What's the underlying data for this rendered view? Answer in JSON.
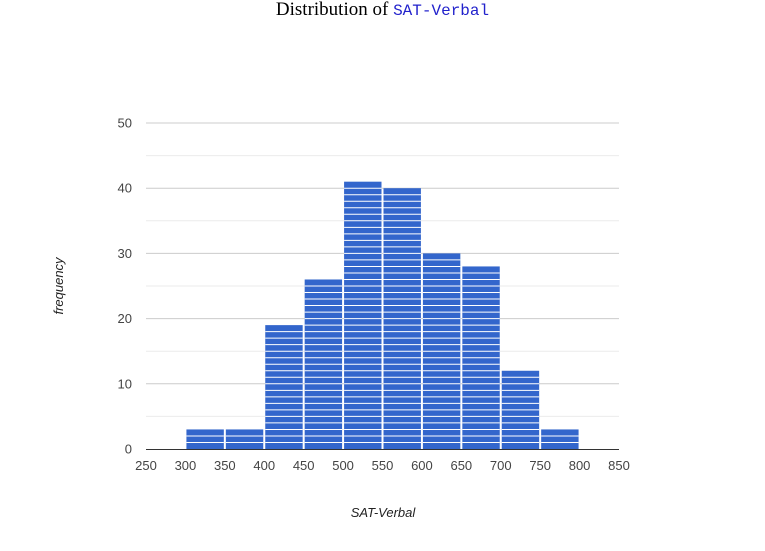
{
  "title": {
    "prefix": "Distribution of ",
    "variable": "SAT-Verbal"
  },
  "colors": {
    "bar": "#3366cc",
    "bar_stripe": "#ffffff",
    "gridline": "#cccccc",
    "minor_gridline": "#ebebeb",
    "baseline": "#333333"
  },
  "chart_data": {
    "type": "bar",
    "subtype": "histogram",
    "title": "Distribution of SAT-Verbal",
    "xlabel": "SAT-Verbal",
    "ylabel": "frequency",
    "xlim": [
      250,
      850
    ],
    "ylim": [
      0,
      50
    ],
    "x_ticks": [
      250,
      300,
      350,
      400,
      450,
      500,
      550,
      600,
      650,
      700,
      750,
      800,
      850
    ],
    "y_ticks": [
      0,
      10,
      20,
      30,
      40,
      50
    ],
    "bin_width": 50,
    "bins": [
      {
        "start": 300,
        "end": 350,
        "count": 3
      },
      {
        "start": 350,
        "end": 400,
        "count": 3
      },
      {
        "start": 400,
        "end": 450,
        "count": 19
      },
      {
        "start": 450,
        "end": 500,
        "count": 26
      },
      {
        "start": 500,
        "end": 550,
        "count": 41
      },
      {
        "start": 550,
        "end": 600,
        "count": 40
      },
      {
        "start": 600,
        "end": 650,
        "count": 30
      },
      {
        "start": 650,
        "end": 700,
        "count": 28
      },
      {
        "start": 700,
        "end": 750,
        "count": 12
      },
      {
        "start": 750,
        "end": 800,
        "count": 3
      }
    ],
    "grid": true,
    "legend": "none"
  }
}
